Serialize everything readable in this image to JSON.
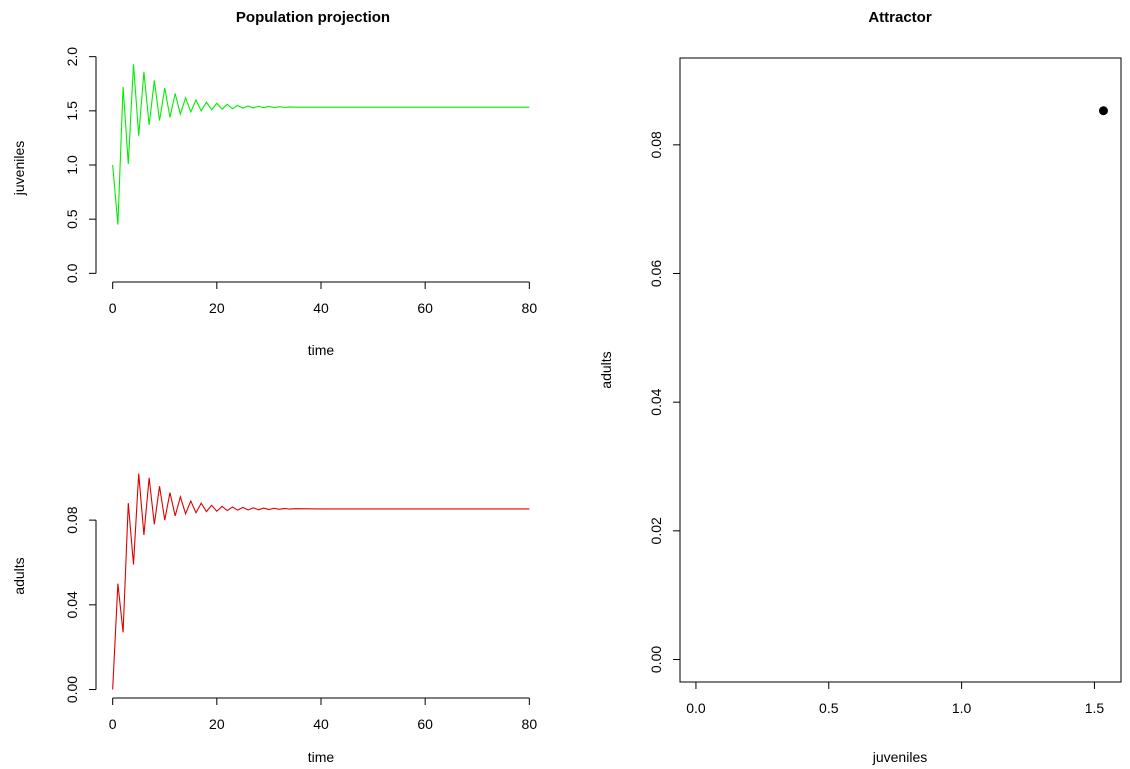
{
  "chart_data": [
    {
      "type": "line",
      "panel": "juveniles-time",
      "title": "Population projection",
      "xlabel": "time",
      "ylabel": "juveniles",
      "xlim": [
        0,
        80
      ],
      "ylim": [
        0,
        2.0
      ],
      "x_ticks": [
        0,
        20,
        40,
        60,
        80
      ],
      "y_ticks": [
        0.0,
        0.5,
        1.0,
        1.5,
        2.0
      ],
      "x_tick_labels": [
        "0",
        "20",
        "40",
        "60",
        "80"
      ],
      "y_tick_labels": [
        "0.0",
        "0.5",
        "1.0",
        "1.5",
        "2.0"
      ],
      "grid": false,
      "series": [
        {
          "color": "#00ee00",
          "x": [
            0,
            1,
            2,
            3,
            4,
            5,
            6,
            7,
            8,
            9,
            10,
            11,
            12,
            13,
            14,
            15,
            16,
            17,
            18,
            19,
            20,
            21,
            22,
            23,
            24,
            25,
            26,
            27,
            28,
            29,
            30,
            31,
            32,
            33,
            34,
            35,
            40,
            50,
            60,
            70,
            80
          ],
          "values": [
            1.0,
            0.45,
            1.72,
            1.01,
            1.93,
            1.27,
            1.86,
            1.37,
            1.78,
            1.41,
            1.71,
            1.44,
            1.66,
            1.47,
            1.62,
            1.49,
            1.6,
            1.5,
            1.58,
            1.51,
            1.57,
            1.515,
            1.56,
            1.52,
            1.55,
            1.525,
            1.545,
            1.527,
            1.542,
            1.529,
            1.54,
            1.53,
            1.538,
            1.532,
            1.536,
            1.534,
            1.534,
            1.534,
            1.534,
            1.534,
            1.534
          ]
        }
      ]
    },
    {
      "type": "line",
      "panel": "adults-time",
      "title": "",
      "xlabel": "time",
      "ylabel": "adults",
      "xlim": [
        0,
        80
      ],
      "ylim": [
        0,
        0.1
      ],
      "x_ticks": [
        0,
        20,
        40,
        60,
        80
      ],
      "y_ticks": [
        0.0,
        0.04,
        0.08
      ],
      "x_tick_labels": [
        "0",
        "20",
        "40",
        "60",
        "80"
      ],
      "y_tick_labels": [
        "0.00",
        "0.04",
        "0.08"
      ],
      "grid": false,
      "series": [
        {
          "color": "#dd0000",
          "x": [
            0,
            1,
            2,
            3,
            4,
            5,
            6,
            7,
            8,
            9,
            10,
            11,
            12,
            13,
            14,
            15,
            16,
            17,
            18,
            19,
            20,
            21,
            22,
            23,
            24,
            25,
            26,
            27,
            28,
            29,
            30,
            31,
            32,
            33,
            34,
            35,
            40,
            50,
            60,
            70,
            80
          ],
          "values": [
            0.0,
            0.05,
            0.027,
            0.088,
            0.059,
            0.102,
            0.073,
            0.1,
            0.078,
            0.096,
            0.08,
            0.093,
            0.082,
            0.091,
            0.083,
            0.089,
            0.0835,
            0.088,
            0.084,
            0.087,
            0.0842,
            0.0865,
            0.0845,
            0.0862,
            0.0847,
            0.086,
            0.0848,
            0.0858,
            0.0849,
            0.0857,
            0.085,
            0.0856,
            0.0851,
            0.0855,
            0.0852,
            0.0854,
            0.0853,
            0.0853,
            0.0853,
            0.0853,
            0.0853
          ]
        }
      ]
    },
    {
      "type": "scatter",
      "panel": "attractor",
      "title": "Attractor",
      "xlabel": "juveniles",
      "ylabel": "adults",
      "xlim": [
        -0.06,
        1.6
      ],
      "ylim": [
        -0.0035,
        0.0935
      ],
      "x_ticks": [
        0.0,
        0.5,
        1.0,
        1.5
      ],
      "y_ticks": [
        0.0,
        0.02,
        0.04,
        0.06,
        0.08
      ],
      "x_tick_labels": [
        "0.0",
        "0.5",
        "1.0",
        "1.5"
      ],
      "y_tick_labels": [
        "0.00",
        "0.02",
        "0.04",
        "0.06",
        "0.08"
      ],
      "grid": false,
      "series": [
        {
          "color": "#000000",
          "x": [
            1.534
          ],
          "values": [
            0.0853
          ]
        }
      ]
    }
  ]
}
